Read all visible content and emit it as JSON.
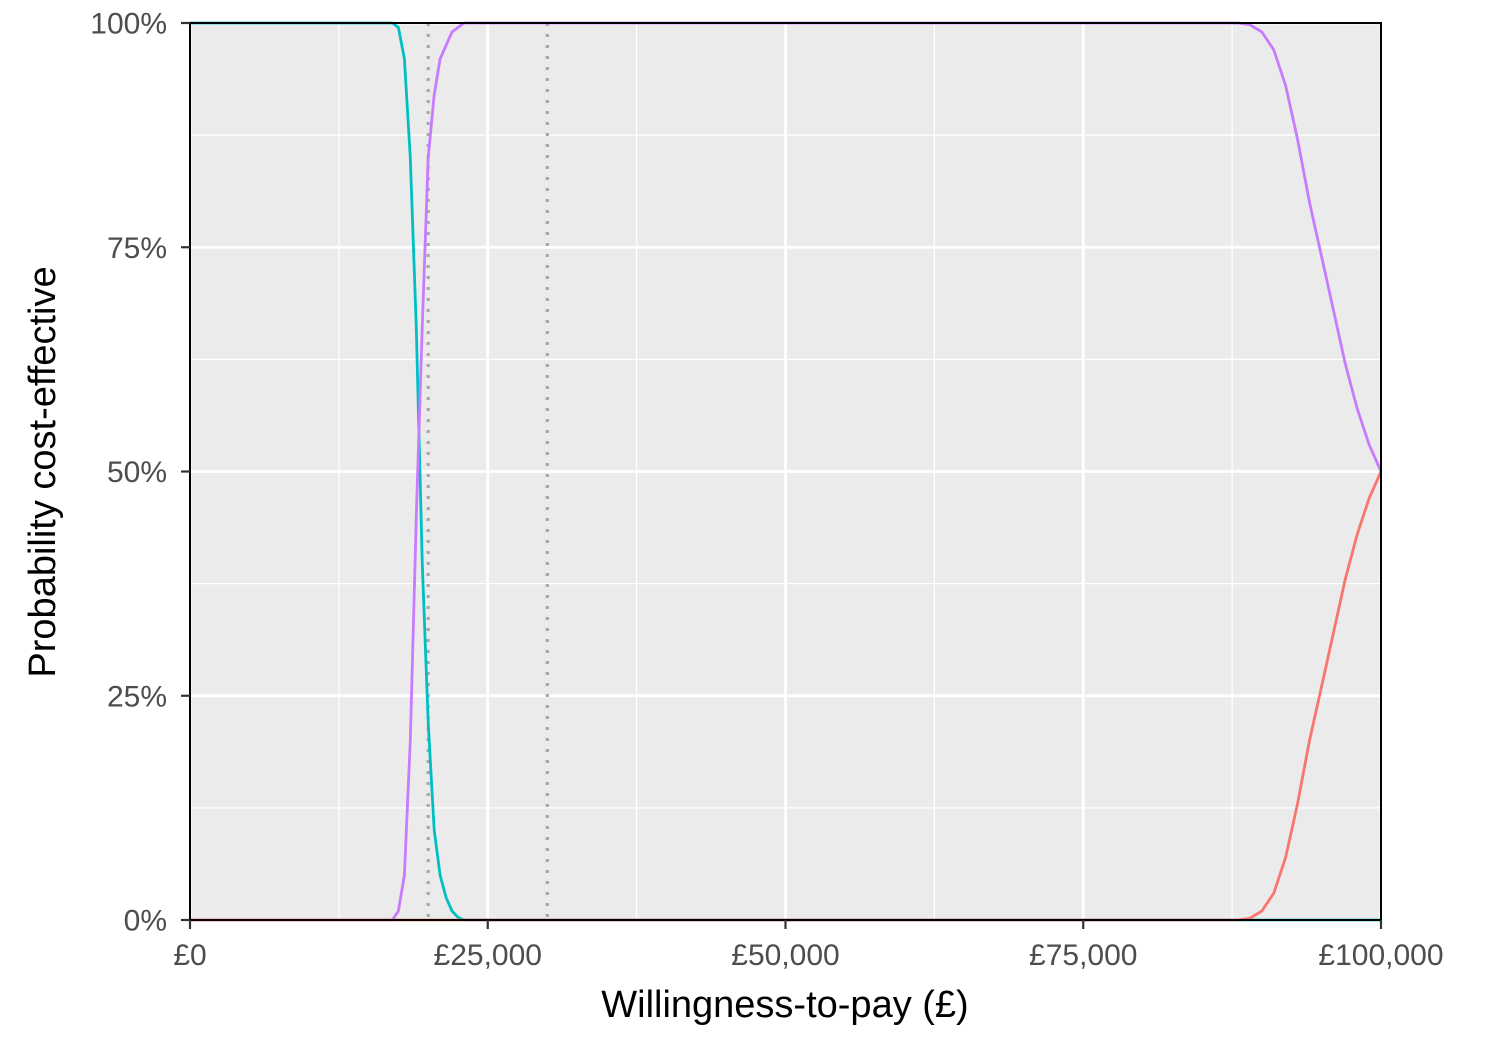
{
  "chart_data": {
    "type": "line",
    "title": "",
    "xlabel": "Willingness-to-pay (£)",
    "ylabel": "Probability cost-effective",
    "xlim": [
      0,
      100000
    ],
    "ylim": [
      0,
      1
    ],
    "x_ticks": [
      {
        "value": 0,
        "label": "£0"
      },
      {
        "value": 25000,
        "label": "£25,000"
      },
      {
        "value": 50000,
        "label": "£50,000"
      },
      {
        "value": 75000,
        "label": "£75,000"
      },
      {
        "value": 100000,
        "label": "£100,000"
      }
    ],
    "y_ticks": [
      {
        "value": 0,
        "label": "0%"
      },
      {
        "value": 0.25,
        "label": "25%"
      },
      {
        "value": 0.5,
        "label": "50%"
      },
      {
        "value": 0.75,
        "label": "75%"
      },
      {
        "value": 1,
        "label": "100%"
      }
    ],
    "grid": true,
    "legend": "none",
    "reference_lines_x": [
      20000,
      30000
    ],
    "series": [
      {
        "color": "#00BFC4",
        "points": [
          [
            0,
            1
          ],
          [
            17000,
            1
          ],
          [
            17500,
            0.995
          ],
          [
            18000,
            0.96
          ],
          [
            18500,
            0.85
          ],
          [
            19000,
            0.66
          ],
          [
            19500,
            0.4
          ],
          [
            20000,
            0.22
          ],
          [
            20500,
            0.1
          ],
          [
            21000,
            0.05
          ],
          [
            21500,
            0.025
          ],
          [
            22000,
            0.01
          ],
          [
            22500,
            0.003
          ],
          [
            23000,
            0
          ],
          [
            100000,
            0
          ]
        ]
      },
      {
        "color": "#C77CFF",
        "points": [
          [
            0,
            0
          ],
          [
            17000,
            0
          ],
          [
            17500,
            0.01
          ],
          [
            18000,
            0.05
          ],
          [
            18500,
            0.2
          ],
          [
            19000,
            0.45
          ],
          [
            19500,
            0.66
          ],
          [
            20000,
            0.85
          ],
          [
            20500,
            0.92
          ],
          [
            21000,
            0.96
          ],
          [
            22000,
            0.99
          ],
          [
            23000,
            1
          ],
          [
            88000,
            1
          ],
          [
            89000,
            0.998
          ],
          [
            90000,
            0.99
          ],
          [
            91000,
            0.97
          ],
          [
            92000,
            0.93
          ],
          [
            93000,
            0.87
          ],
          [
            94000,
            0.8
          ],
          [
            95000,
            0.74
          ],
          [
            96000,
            0.68
          ],
          [
            97000,
            0.62
          ],
          [
            98000,
            0.57
          ],
          [
            99000,
            0.53
          ],
          [
            100000,
            0.5
          ]
        ]
      },
      {
        "color": "#F8766D",
        "points": [
          [
            0,
            0
          ],
          [
            88000,
            0
          ],
          [
            89000,
            0.002
          ],
          [
            90000,
            0.01
          ],
          [
            91000,
            0.03
          ],
          [
            92000,
            0.07
          ],
          [
            93000,
            0.13
          ],
          [
            94000,
            0.2
          ],
          [
            95000,
            0.26
          ],
          [
            96000,
            0.32
          ],
          [
            97000,
            0.38
          ],
          [
            98000,
            0.43
          ],
          [
            99000,
            0.47
          ],
          [
            100000,
            0.5
          ]
        ]
      }
    ]
  }
}
